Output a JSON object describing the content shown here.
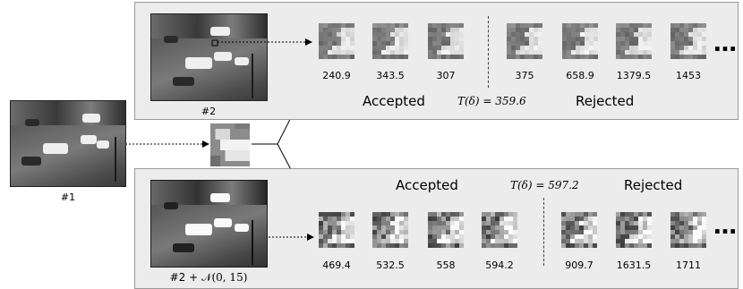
{
  "image_labels": {
    "ref": "#1",
    "top": "#2",
    "bottom_prefix": "#2",
    "bottom_suffix": "+ 𝒩(0, 15)"
  },
  "top_panel": {
    "accepted_label": "Accepted",
    "rejected_label": "Rejected",
    "threshold": "T(δ) = 359.6",
    "ellipsis": "…",
    "accepted_scores": [
      "240.9",
      "343.5",
      "307"
    ],
    "rejected_scores": [
      "375",
      "658.9",
      "1379.5",
      "1453"
    ]
  },
  "bottom_panel": {
    "accepted_label": "Accepted",
    "rejected_label": "Rejected",
    "threshold": "T(δ) = 597.2",
    "ellipsis": "…",
    "accepted_scores": [
      "469.4",
      "532.5",
      "558",
      "594.2"
    ],
    "rejected_scores": [
      "909.7",
      "1631.5",
      "1711"
    ]
  }
}
